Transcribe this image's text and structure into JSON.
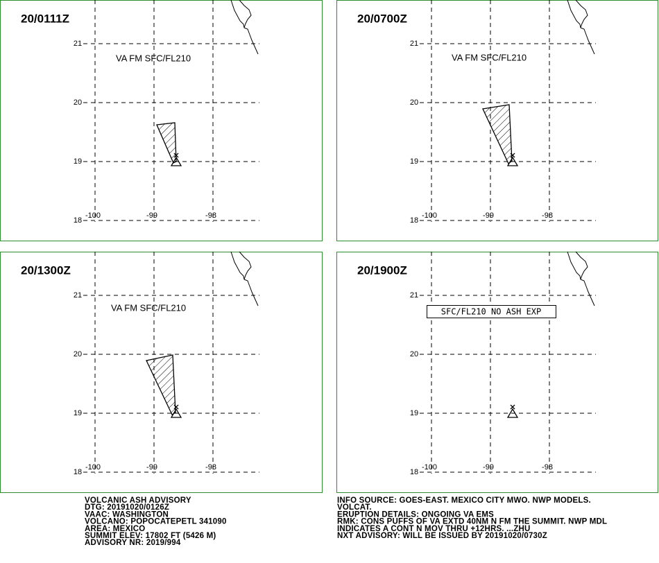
{
  "panels": [
    {
      "time": "20/0111Z",
      "label": "VA FM SFC/FL210",
      "ash": true
    },
    {
      "time": "20/0700Z",
      "label": "VA FM SFC/FL210",
      "ash": true
    },
    {
      "time": "20/1300Z",
      "label": "VA FM SFC/FL210",
      "ash": true
    },
    {
      "time": "20/1900Z",
      "label": "SFC/FL210 NO ASH EXP",
      "ash": false
    }
  ],
  "grid": {
    "lat_labels": [
      "21",
      "20",
      "19",
      "18"
    ],
    "lon_labels": [
      "-100",
      "-99",
      "-98"
    ]
  },
  "advisory_left": [
    "VOLCANIC ASH ADVISORY",
    "DTG: 20191020/0126Z",
    "VAAC: WASHINGTON",
    "VOLCANO: POPOCATEPETL 341090",
    "AREA: MEXICO",
    "SUMMIT ELEV: 17802 FT (5426 M)",
    "ADVISORY NR: 2019/994"
  ],
  "advisory_right": [
    "INFO SOURCE: GOES-EAST. MEXICO CITY MWO. NWP MODELS.",
    "VOLCAT.",
    "ERUPTION DETAILS: ONGOING VA EMS",
    "RMK: CONS PUFFS OF VA EXTD 40NM N FM THE SUMMIT. NWP MDL",
    "INDICATES A CONT N MOV THRU +12HRS. ...ZHU",
    "NXT ADVISORY: WILL BE ISSUED BY 20191020/0730Z"
  ]
}
